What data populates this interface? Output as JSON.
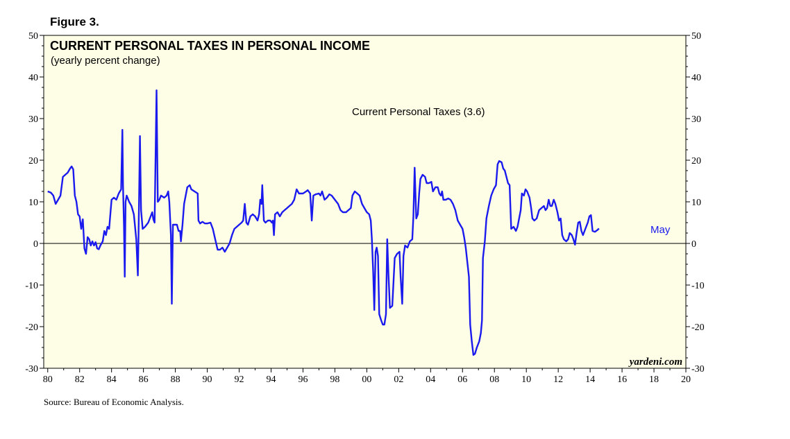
{
  "figure_label": "Figure 3.",
  "source": "Source: Bureau of Economic Analysis.",
  "watermark": "yardeni.com",
  "colors": {
    "plot_bg": "#fefde5",
    "series": "#1a1aee",
    "axis": "#000000"
  },
  "chart_data": {
    "type": "line",
    "title": "CURRENT PERSONAL TAXES IN PERSONAL INCOME",
    "subtitle": "(yearly percent change)",
    "xlabel": "",
    "ylabel": "",
    "xlim": [
      1979.75,
      2020
    ],
    "ylim": [
      -30,
      50
    ],
    "y_ticks": [
      -30,
      -20,
      -10,
      0,
      10,
      20,
      30,
      40,
      50
    ],
    "y_tick_labels": [
      "-30",
      "-20",
      "-10",
      "0",
      "10",
      "20",
      "30",
      "40",
      "50"
    ],
    "x_ticks": [
      1980,
      1982,
      1984,
      1986,
      1988,
      1990,
      1992,
      1994,
      1996,
      1998,
      2000,
      2002,
      2004,
      2006,
      2008,
      2010,
      2012,
      2014,
      2016,
      2018,
      2020
    ],
    "x_tick_labels": [
      "80",
      "82",
      "84",
      "86",
      "88",
      "90",
      "92",
      "94",
      "96",
      "98",
      "00",
      "02",
      "04",
      "06",
      "08",
      "10",
      "12",
      "14",
      "16",
      "18",
      "20"
    ],
    "grid": false,
    "legend_position": "top-center",
    "zero_line": true,
    "end_label": "May",
    "series": [
      {
        "name": "Current Personal Taxes (3.6)",
        "points": [
          [
            1980.0,
            12.5
          ],
          [
            1980.2,
            12.2
          ],
          [
            1980.35,
            11.5
          ],
          [
            1980.5,
            9.5
          ],
          [
            1980.65,
            10.5
          ],
          [
            1980.8,
            11.5
          ],
          [
            1980.95,
            16.0
          ],
          [
            1981.1,
            16.5
          ],
          [
            1981.25,
            17.0
          ],
          [
            1981.4,
            18.0
          ],
          [
            1981.5,
            18.5
          ],
          [
            1981.6,
            17.8
          ],
          [
            1981.7,
            11.5
          ],
          [
            1981.8,
            10.0
          ],
          [
            1981.9,
            7.0
          ],
          [
            1982.0,
            6.5
          ],
          [
            1982.1,
            3.5
          ],
          [
            1982.2,
            5.8
          ],
          [
            1982.3,
            -1.2
          ],
          [
            1982.4,
            -2.5
          ],
          [
            1982.5,
            1.5
          ],
          [
            1982.6,
            1.0
          ],
          [
            1982.7,
            -0.5
          ],
          [
            1982.8,
            0.5
          ],
          [
            1982.9,
            -0.5
          ],
          [
            1983.0,
            0.3
          ],
          [
            1983.1,
            -1.2
          ],
          [
            1983.2,
            -1.4
          ],
          [
            1983.3,
            -0.5
          ],
          [
            1983.45,
            0.5
          ],
          [
            1983.55,
            3.0
          ],
          [
            1983.65,
            2.0
          ],
          [
            1983.75,
            4.0
          ],
          [
            1983.85,
            3.5
          ],
          [
            1984.0,
            10.5
          ],
          [
            1984.15,
            11.0
          ],
          [
            1984.3,
            10.5
          ],
          [
            1984.45,
            12.0
          ],
          [
            1984.6,
            13.0
          ],
          [
            1984.68,
            27.3
          ],
          [
            1984.72,
            14.0
          ],
          [
            1984.78,
            4.0
          ],
          [
            1984.83,
            -8.0
          ],
          [
            1984.88,
            10.0
          ],
          [
            1984.95,
            11.5
          ],
          [
            1985.1,
            10.0
          ],
          [
            1985.25,
            9.0
          ],
          [
            1985.4,
            7.0
          ],
          [
            1985.55,
            1.0
          ],
          [
            1985.65,
            -7.7
          ],
          [
            1985.72,
            9.0
          ],
          [
            1985.78,
            25.8
          ],
          [
            1985.85,
            8.0
          ],
          [
            1985.95,
            3.5
          ],
          [
            1986.1,
            4.0
          ],
          [
            1986.3,
            5.0
          ],
          [
            1986.45,
            6.5
          ],
          [
            1986.55,
            7.5
          ],
          [
            1986.62,
            5.8
          ],
          [
            1986.7,
            5.0
          ],
          [
            1986.82,
            36.8
          ],
          [
            1986.9,
            10.0
          ],
          [
            1987.0,
            10.5
          ],
          [
            1987.1,
            11.5
          ],
          [
            1987.3,
            11.0
          ],
          [
            1987.45,
            11.5
          ],
          [
            1987.55,
            12.5
          ],
          [
            1987.62,
            10.0
          ],
          [
            1987.72,
            2.0
          ],
          [
            1987.78,
            -14.5
          ],
          [
            1987.85,
            4.5
          ],
          [
            1988.0,
            4.5
          ],
          [
            1988.1,
            4.5
          ],
          [
            1988.2,
            3.0
          ],
          [
            1988.3,
            3.0
          ],
          [
            1988.35,
            0.5
          ],
          [
            1988.45,
            4.5
          ],
          [
            1988.55,
            9.5
          ],
          [
            1988.65,
            11.5
          ],
          [
            1988.75,
            13.5
          ],
          [
            1988.9,
            14.0
          ],
          [
            1989.0,
            13.0
          ],
          [
            1989.2,
            12.5
          ],
          [
            1989.4,
            12.0
          ],
          [
            1989.45,
            5.5
          ],
          [
            1989.55,
            4.8
          ],
          [
            1989.7,
            5.2
          ],
          [
            1989.85,
            4.8
          ],
          [
            1990.0,
            4.8
          ],
          [
            1990.2,
            5.0
          ],
          [
            1990.35,
            3.5
          ],
          [
            1990.5,
            1.0
          ],
          [
            1990.65,
            -1.5
          ],
          [
            1990.8,
            -1.5
          ],
          [
            1990.95,
            -1.0
          ],
          [
            1991.1,
            -2.0
          ],
          [
            1991.25,
            -1.0
          ],
          [
            1991.4,
            0.0
          ],
          [
            1991.55,
            2.0
          ],
          [
            1991.7,
            3.5
          ],
          [
            1991.85,
            4.0
          ],
          [
            1992.0,
            4.5
          ],
          [
            1992.15,
            5.0
          ],
          [
            1992.25,
            5.5
          ],
          [
            1992.35,
            9.5
          ],
          [
            1992.45,
            5.0
          ],
          [
            1992.55,
            4.5
          ],
          [
            1992.7,
            6.5
          ],
          [
            1992.85,
            7.0
          ],
          [
            1993.0,
            6.5
          ],
          [
            1993.15,
            5.5
          ],
          [
            1993.25,
            7.0
          ],
          [
            1993.32,
            10.5
          ],
          [
            1993.4,
            9.5
          ],
          [
            1993.45,
            14.0
          ],
          [
            1993.55,
            5.5
          ],
          [
            1993.65,
            5.0
          ],
          [
            1993.8,
            5.5
          ],
          [
            1993.95,
            5.5
          ],
          [
            1994.05,
            5.0
          ],
          [
            1994.12,
            5.5
          ],
          [
            1994.18,
            2.0
          ],
          [
            1994.25,
            7.0
          ],
          [
            1994.4,
            7.5
          ],
          [
            1994.55,
            6.5
          ],
          [
            1994.7,
            7.5
          ],
          [
            1994.85,
            8.0
          ],
          [
            1995.0,
            8.5
          ],
          [
            1995.15,
            9.0
          ],
          [
            1995.3,
            9.5
          ],
          [
            1995.45,
            10.5
          ],
          [
            1995.6,
            13.0
          ],
          [
            1995.75,
            12.0
          ],
          [
            1996.0,
            12.0
          ],
          [
            1996.2,
            12.5
          ],
          [
            1996.3,
            12.8
          ],
          [
            1996.45,
            12.0
          ],
          [
            1996.55,
            5.5
          ],
          [
            1996.65,
            11.5
          ],
          [
            1996.8,
            11.8
          ],
          [
            1997.0,
            12.0
          ],
          [
            1997.1,
            11.5
          ],
          [
            1997.2,
            12.5
          ],
          [
            1997.35,
            10.5
          ],
          [
            1997.5,
            11.0
          ],
          [
            1997.65,
            11.8
          ],
          [
            1997.8,
            11.5
          ],
          [
            1998.0,
            10.5
          ],
          [
            1998.2,
            9.5
          ],
          [
            1998.35,
            8.0
          ],
          [
            1998.5,
            7.5
          ],
          [
            1998.7,
            7.5
          ],
          [
            1998.85,
            8.0
          ],
          [
            1999.0,
            8.5
          ],
          [
            1999.1,
            11.5
          ],
          [
            1999.25,
            12.5
          ],
          [
            1999.4,
            12.0
          ],
          [
            1999.55,
            11.5
          ],
          [
            1999.7,
            9.5
          ],
          [
            1999.85,
            8.5
          ],
          [
            2000.0,
            7.5
          ],
          [
            2000.15,
            7.0
          ],
          [
            2000.25,
            5.5
          ],
          [
            2000.32,
            1.0
          ],
          [
            2000.4,
            -7.0
          ],
          [
            2000.47,
            -16.0
          ],
          [
            2000.55,
            -2.0
          ],
          [
            2000.62,
            -1.0
          ],
          [
            2000.7,
            -3.0
          ],
          [
            2000.78,
            -17.0
          ],
          [
            2000.9,
            -18.5
          ],
          [
            2001.0,
            -19.5
          ],
          [
            2001.1,
            -19.5
          ],
          [
            2001.2,
            -17.0
          ],
          [
            2001.28,
            1.0
          ],
          [
            2001.36,
            -7.5
          ],
          [
            2001.45,
            -15.5
          ],
          [
            2001.6,
            -15.0
          ],
          [
            2001.75,
            -3.5
          ],
          [
            2001.9,
            -2.5
          ],
          [
            2002.05,
            -2.0
          ],
          [
            2002.12,
            -8.0
          ],
          [
            2002.22,
            -14.5
          ],
          [
            2002.3,
            -3.0
          ],
          [
            2002.4,
            -0.5
          ],
          [
            2002.55,
            -1.0
          ],
          [
            2002.7,
            0.5
          ],
          [
            2002.85,
            1.0
          ],
          [
            2002.92,
            6.5
          ],
          [
            2003.0,
            18.2
          ],
          [
            2003.1,
            6.0
          ],
          [
            2003.2,
            7.0
          ],
          [
            2003.28,
            12.0
          ],
          [
            2003.36,
            15.5
          ],
          [
            2003.5,
            16.5
          ],
          [
            2003.65,
            16.0
          ],
          [
            2003.75,
            14.5
          ],
          [
            2003.9,
            14.5
          ],
          [
            2004.05,
            14.8
          ],
          [
            2004.15,
            12.5
          ],
          [
            2004.3,
            13.5
          ],
          [
            2004.45,
            13.5
          ],
          [
            2004.55,
            12.0
          ],
          [
            2004.65,
            11.5
          ],
          [
            2004.72,
            12.5
          ],
          [
            2004.8,
            10.5
          ],
          [
            2004.95,
            10.5
          ],
          [
            2005.1,
            10.8
          ],
          [
            2005.25,
            10.5
          ],
          [
            2005.4,
            9.5
          ],
          [
            2005.55,
            8.0
          ],
          [
            2005.7,
            5.5
          ],
          [
            2005.85,
            4.5
          ],
          [
            2006.0,
            3.5
          ],
          [
            2006.1,
            1.5
          ],
          [
            2006.2,
            -1.0
          ],
          [
            2006.3,
            -4.5
          ],
          [
            2006.4,
            -8.0
          ],
          [
            2006.48,
            -19.5
          ],
          [
            2006.58,
            -23.5
          ],
          [
            2006.68,
            -26.8
          ],
          [
            2006.78,
            -26.5
          ],
          [
            2006.9,
            -25.0
          ],
          [
            2007.05,
            -23.5
          ],
          [
            2007.15,
            -21.5
          ],
          [
            2007.22,
            -18.5
          ],
          [
            2007.28,
            -3.5
          ],
          [
            2007.4,
            0.5
          ],
          [
            2007.5,
            6.0
          ],
          [
            2007.65,
            9.0
          ],
          [
            2007.8,
            11.5
          ],
          [
            2007.95,
            13.0
          ],
          [
            2008.1,
            14.0
          ],
          [
            2008.2,
            19.0
          ],
          [
            2008.3,
            19.8
          ],
          [
            2008.45,
            19.5
          ],
          [
            2008.55,
            18.0
          ],
          [
            2008.65,
            17.5
          ],
          [
            2008.75,
            16.0
          ],
          [
            2008.85,
            14.5
          ],
          [
            2008.95,
            14.0
          ],
          [
            2009.05,
            3.5
          ],
          [
            2009.2,
            4.0
          ],
          [
            2009.35,
            3.0
          ],
          [
            2009.45,
            4.0
          ],
          [
            2009.55,
            6.0
          ],
          [
            2009.65,
            8.0
          ],
          [
            2009.72,
            12.0
          ],
          [
            2009.85,
            11.5
          ],
          [
            2009.95,
            13.0
          ],
          [
            2010.05,
            12.5
          ],
          [
            2010.2,
            11.0
          ],
          [
            2010.3,
            8.5
          ],
          [
            2010.38,
            6.0
          ],
          [
            2010.5,
            5.5
          ],
          [
            2010.65,
            6.0
          ],
          [
            2010.8,
            8.0
          ],
          [
            2010.95,
            8.5
          ],
          [
            2011.1,
            9.0
          ],
          [
            2011.2,
            8.0
          ],
          [
            2011.3,
            8.5
          ],
          [
            2011.4,
            10.5
          ],
          [
            2011.5,
            9.0
          ],
          [
            2011.6,
            9.0
          ],
          [
            2011.72,
            10.5
          ],
          [
            2011.82,
            9.5
          ],
          [
            2011.95,
            7.5
          ],
          [
            2012.05,
            5.5
          ],
          [
            2012.15,
            6.0
          ],
          [
            2012.25,
            2.0
          ],
          [
            2012.35,
            1.0
          ],
          [
            2012.5,
            0.5
          ],
          [
            2012.62,
            1.0
          ],
          [
            2012.72,
            2.5
          ],
          [
            2012.85,
            2.0
          ],
          [
            2012.95,
            1.0
          ],
          [
            2013.05,
            -0.3
          ],
          [
            2013.15,
            2.5
          ],
          [
            2013.25,
            5.0
          ],
          [
            2013.35,
            5.2
          ],
          [
            2013.45,
            3.0
          ],
          [
            2013.55,
            2.0
          ],
          [
            2013.7,
            3.5
          ],
          [
            2013.85,
            5.0
          ],
          [
            2013.95,
            6.5
          ],
          [
            2014.05,
            6.8
          ],
          [
            2014.15,
            3.0
          ],
          [
            2014.3,
            2.8
          ],
          [
            2014.45,
            3.2
          ],
          [
            2014.55,
            3.6
          ]
        ]
      }
    ]
  }
}
